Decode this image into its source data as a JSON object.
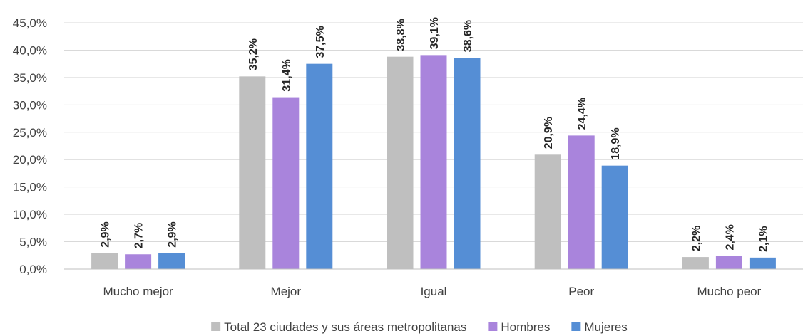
{
  "chart_data": {
    "type": "bar",
    "title": "",
    "xlabel": "",
    "ylabel": "",
    "categories": [
      "Mucho mejor",
      "Mejor",
      "Igual",
      "Peor",
      "Mucho peor"
    ],
    "ylim": [
      0,
      45
    ],
    "yticks": [
      0,
      5,
      10,
      15,
      20,
      25,
      30,
      35,
      40,
      45
    ],
    "ytick_labels": [
      "0,0%",
      "5,0%",
      "10,0%",
      "15,0%",
      "20,0%",
      "25,0%",
      "30,0%",
      "35,0%",
      "40,0%",
      "45,0%"
    ],
    "grid": true,
    "legend_position": "bottom",
    "series": [
      {
        "name": "Total 23 ciudades y sus áreas metropolitanas",
        "color": "#BFBFBF",
        "values": [
          2.9,
          35.2,
          38.8,
          20.9,
          2.2
        ],
        "labels": [
          "2,9%",
          "35,2%",
          "38,8%",
          "20,9%",
          "2,2%"
        ]
      },
      {
        "name": "Hombres",
        "color": "#A984DC",
        "values": [
          2.7,
          31.4,
          39.1,
          24.4,
          2.4
        ],
        "labels": [
          "2,7%",
          "31,4%",
          "39,1%",
          "24,4%",
          "2,4%"
        ]
      },
      {
        "name": "Mujeres",
        "color": "#558ED5",
        "values": [
          2.9,
          37.5,
          38.6,
          18.9,
          2.1
        ],
        "labels": [
          "2,9%",
          "37,5%",
          "38,6%",
          "18,9%",
          "2,1%"
        ]
      }
    ]
  }
}
